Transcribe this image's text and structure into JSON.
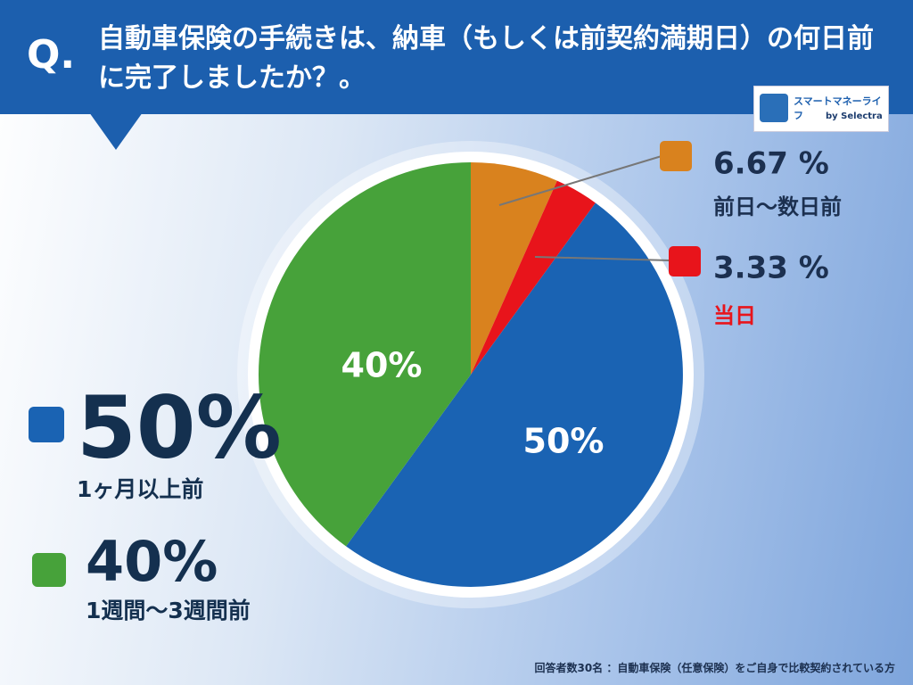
{
  "chart_data": {
    "type": "pie",
    "badge": "Q.",
    "title": "自動車保険の手続きは、納車（もしくは前契約満期日）の何日前に完了しましたか？。",
    "categories": [
      "前日〜数日前",
      "当日",
      "1ヶ月以上前",
      "1週間〜3週間前"
    ],
    "values": [
      6.67,
      3.33,
      50,
      40
    ],
    "value_labels": [
      "6.67 %",
      "3.33 %",
      "50%",
      "40%"
    ],
    "colors": [
      "#d9821e",
      "#e8141b",
      "#1a63b3",
      "#47a23a"
    ],
    "note": "回答者数30名 ：自動車保険（任意保険）をご自身で比較契約されている方"
  },
  "logo": {
    "name": "スマートマネーライフ",
    "by": "by Selectra"
  }
}
